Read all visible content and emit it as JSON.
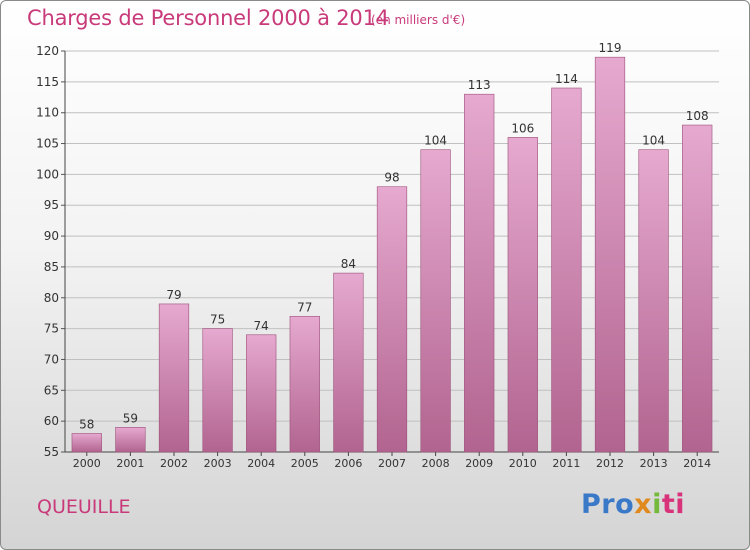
{
  "header": {
    "title": "Charges de Personnel 2000 à 2014",
    "subtitle": "(en milliers d'€)"
  },
  "footer": {
    "commune": "QUEUILLE",
    "logo_parts": [
      "Pro",
      "x",
      "i",
      "ti"
    ]
  },
  "colors": {
    "title": "#c93a7a",
    "bar_top": "#e6a9cf",
    "bar_bottom": "#b1648f",
    "bar_border": "#9c5079",
    "grid": "#c0c0c0"
  },
  "chart_data": {
    "type": "bar",
    "title": "Charges de Personnel 2000 à 2014",
    "subtitle": "(en milliers d'€)",
    "categories": [
      "2000",
      "2001",
      "2002",
      "2003",
      "2004",
      "2005",
      "2006",
      "2007",
      "2008",
      "2009",
      "2010",
      "2011",
      "2012",
      "2013",
      "2014"
    ],
    "values": [
      58,
      59,
      79,
      75,
      74,
      77,
      84,
      98,
      104,
      113,
      106,
      114,
      119,
      104,
      108
    ],
    "ylim": [
      55,
      120
    ],
    "yticks": [
      55,
      60,
      65,
      70,
      75,
      80,
      85,
      90,
      95,
      100,
      105,
      110,
      115,
      120
    ],
    "grid": true,
    "data_labels": true
  }
}
